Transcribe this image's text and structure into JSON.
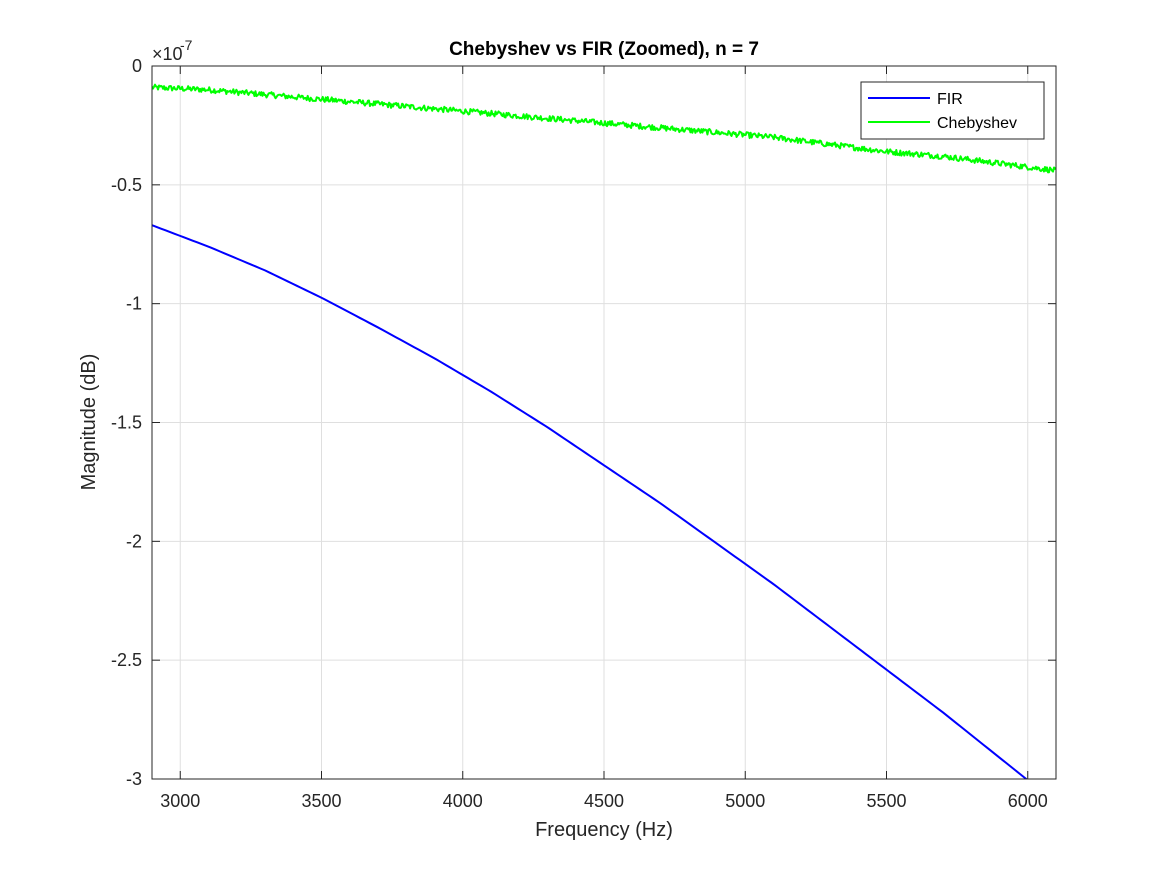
{
  "chart_data": {
    "type": "line",
    "title": "Chebyshev vs FIR (Zoomed), n = 7",
    "xlabel": "Frequency (Hz)",
    "ylabel": "Magnitude (dB)",
    "y_exponent_label": "×10",
    "y_exponent_power": "-7",
    "xlim": [
      2900,
      6100
    ],
    "ylim": [
      -3,
      0
    ],
    "y_scale_factor": 1e-07,
    "xticks": [
      3000,
      3500,
      4000,
      4500,
      5000,
      5500,
      6000
    ],
    "xtick_labels": [
      "3000",
      "3500",
      "4000",
      "4500",
      "5000",
      "5500",
      "6000"
    ],
    "yticks": [
      0,
      -0.5,
      -1,
      -1.5,
      -2,
      -2.5,
      -3
    ],
    "ytick_labels": [
      "0",
      "-0.5",
      "-1",
      "-1.5",
      "-2",
      "-2.5",
      "-3"
    ],
    "grid": true,
    "legend_position": "top-right",
    "series": [
      {
        "name": "FIR",
        "color": "#0000ff",
        "x": [
          2900,
          3100,
          3300,
          3500,
          3700,
          3900,
          4100,
          4300,
          4500,
          4700,
          4900,
          5100,
          5300,
          5500,
          5700,
          5900,
          6100
        ],
        "y": [
          -0.67,
          -0.76,
          -0.86,
          -0.975,
          -1.1,
          -1.23,
          -1.37,
          -1.52,
          -1.68,
          -1.84,
          -2.01,
          -2.18,
          -2.36,
          -2.54,
          -2.72,
          -2.91,
          -3.1
        ]
      },
      {
        "name": "Chebyshev",
        "color": "#00ff00",
        "x": [
          2900,
          3100,
          3300,
          3500,
          3700,
          3900,
          4100,
          4300,
          4500,
          4700,
          4900,
          5100,
          5300,
          5500,
          5700,
          5900,
          6100
        ],
        "y": [
          -0.09,
          -0.1,
          -0.12,
          -0.14,
          -0.16,
          -0.18,
          -0.2,
          -0.22,
          -0.24,
          -0.26,
          -0.28,
          -0.3,
          -0.33,
          -0.36,
          -0.38,
          -0.41,
          -0.44
        ],
        "noise_amplitude": 0.012
      }
    ]
  }
}
